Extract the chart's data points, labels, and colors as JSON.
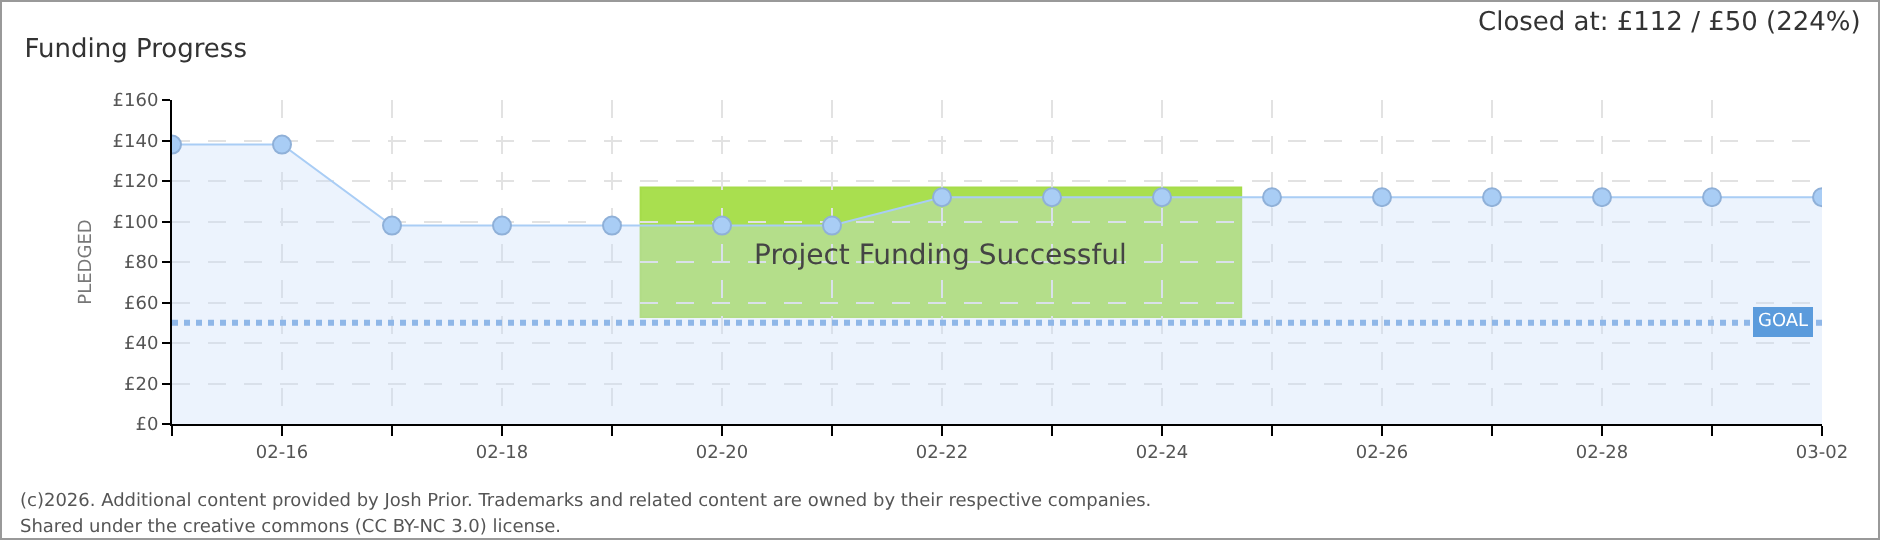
{
  "chart_data": {
    "type": "area",
    "title": "Funding Progress",
    "subtitle": "Closed at: £112 / £50 (224%)",
    "ylabel": "PLEDGED",
    "x": [
      "--02-15",
      "--02-16",
      "--02-17",
      "--02-18",
      "--02-19",
      "--02-20",
      "--02-21",
      "--02-22",
      "--02-23",
      "--02-24",
      "--02-25",
      "--02-26",
      "--02-27",
      "--02-28",
      "--03-01",
      "--03-02"
    ],
    "series": [
      {
        "color": "#a9cdf5",
        "values": [
          138,
          138,
          98,
          98,
          98,
          98,
          98,
          112,
          112,
          112,
          112,
          112,
          112,
          112,
          112,
          112
        ]
      }
    ],
    "xlim": [
      "--02-15",
      "--03-02"
    ],
    "xticks": [
      {
        "value": "--02-15",
        "label": null
      },
      {
        "value": "--02-16",
        "label": "02-16"
      },
      {
        "value": "--02-17",
        "label": null
      },
      {
        "value": "--02-18",
        "label": "02-18"
      },
      {
        "value": "--02-19",
        "label": null
      },
      {
        "value": "--02-20",
        "label": "02-20"
      },
      {
        "value": "--02-21",
        "label": null
      },
      {
        "value": "--02-22",
        "label": "02-22"
      },
      {
        "value": "--02-23",
        "label": null
      },
      {
        "value": "--02-24",
        "label": "02-24"
      },
      {
        "value": "--02-25",
        "label": null
      },
      {
        "value": "--02-26",
        "label": "02-26"
      },
      {
        "value": "--02-27",
        "label": null
      },
      {
        "value": "--02-28",
        "label": "02-28"
      },
      {
        "value": "--03-01",
        "label": null
      },
      {
        "value": "--03-02",
        "label": "03-02"
      }
    ],
    "ylim": [
      0,
      160
    ],
    "yticks": [
      {
        "value": 0,
        "label": "£0"
      },
      {
        "value": 20,
        "label": "£20"
      },
      {
        "value": 40,
        "label": "£40"
      },
      {
        "value": 60,
        "label": "£60"
      },
      {
        "value": 80,
        "label": "£80"
      },
      {
        "value": 100,
        "label": "£100"
      },
      {
        "value": 120,
        "label": "£120"
      },
      {
        "value": 140,
        "label": "£140"
      },
      {
        "value": 160,
        "label": "£160"
      }
    ],
    "ref_lines": [
      {
        "axis": "y",
        "value": 50,
        "label": "GOAL",
        "color": "#8fb7e8",
        "line_style": "dotted"
      }
    ],
    "annotations": [
      "Project Funding Successful",
      "(c)2026. Additional content provided by Josh Prior. Trademarks and related content are owned by their respective companies.",
      "Shared under the creative commons (CC BY-NC 3.0) license."
    ],
    "grid": true,
    "marker": "circle",
    "line_style": "solid"
  }
}
